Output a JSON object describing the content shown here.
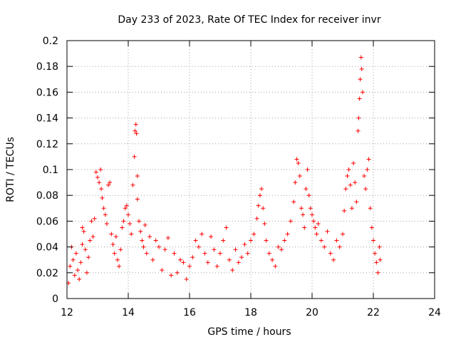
{
  "chart_data": {
    "type": "scatter",
    "title": "Day 233 of 2023, Rate Of TEC Index for receiver invr",
    "xlabel": "GPS time / hours",
    "ylabel": "ROTI / TECUs",
    "xlim": [
      12,
      24
    ],
    "ylim": [
      0,
      0.2
    ],
    "xticks": [
      12,
      14,
      16,
      18,
      20,
      22,
      24
    ],
    "xtick_labels": [
      "12",
      "14",
      "16",
      "18",
      "20",
      "22",
      "24"
    ],
    "yticks": [
      0,
      0.02,
      0.04,
      0.06,
      0.08,
      0.1,
      0.12,
      0.14,
      0.16,
      0.18,
      0.2
    ],
    "ytick_labels": [
      "0",
      "0.02",
      "0.04",
      "0.06",
      "0.08",
      "0.1",
      "0.12",
      "0.14",
      "0.16",
      "0.18",
      "0.2"
    ],
    "grid": true,
    "marker": "+",
    "color": "#ff0000",
    "series": [
      {
        "name": "ROTI",
        "points": [
          [
            12.05,
            0.012
          ],
          [
            12.1,
            0.025
          ],
          [
            12.15,
            0.04
          ],
          [
            12.2,
            0.03
          ],
          [
            12.25,
            0.018
          ],
          [
            12.3,
            0.035
          ],
          [
            12.35,
            0.022
          ],
          [
            12.4,
            0.015
          ],
          [
            12.45,
            0.028
          ],
          [
            12.5,
            0.042
          ],
          [
            12.5,
            0.055
          ],
          [
            12.55,
            0.052
          ],
          [
            12.6,
            0.038
          ],
          [
            12.65,
            0.02
          ],
          [
            12.7,
            0.032
          ],
          [
            12.75,
            0.045
          ],
          [
            12.8,
            0.06
          ],
          [
            12.85,
            0.048
          ],
          [
            12.9,
            0.062
          ],
          [
            12.95,
            0.098
          ],
          [
            13.0,
            0.094
          ],
          [
            13.05,
            0.09
          ],
          [
            13.1,
            0.1
          ],
          [
            13.12,
            0.085
          ],
          [
            13.15,
            0.078
          ],
          [
            13.2,
            0.07
          ],
          [
            13.25,
            0.065
          ],
          [
            13.3,
            0.058
          ],
          [
            13.35,
            0.088
          ],
          [
            13.4,
            0.09
          ],
          [
            13.45,
            0.05
          ],
          [
            13.5,
            0.042
          ],
          [
            13.55,
            0.035
          ],
          [
            13.6,
            0.048
          ],
          [
            13.65,
            0.03
          ],
          [
            13.7,
            0.025
          ],
          [
            13.75,
            0.038
          ],
          [
            13.8,
            0.055
          ],
          [
            13.85,
            0.06
          ],
          [
            13.9,
            0.07
          ],
          [
            13.95,
            0.072
          ],
          [
            14.0,
            0.065
          ],
          [
            14.05,
            0.058
          ],
          [
            14.1,
            0.05
          ],
          [
            14.15,
            0.088
          ],
          [
            14.2,
            0.11
          ],
          [
            14.22,
            0.13
          ],
          [
            14.25,
            0.135
          ],
          [
            14.27,
            0.128
          ],
          [
            14.3,
            0.095
          ],
          [
            14.3,
            0.077
          ],
          [
            14.35,
            0.06
          ],
          [
            14.4,
            0.052
          ],
          [
            14.45,
            0.045
          ],
          [
            14.5,
            0.04
          ],
          [
            14.55,
            0.057
          ],
          [
            14.6,
            0.035
          ],
          [
            14.7,
            0.048
          ],
          [
            14.8,
            0.03
          ],
          [
            14.9,
            0.045
          ],
          [
            15.0,
            0.04
          ],
          [
            15.1,
            0.022
          ],
          [
            15.2,
            0.038
          ],
          [
            15.3,
            0.047
          ],
          [
            15.4,
            0.018
          ],
          [
            15.5,
            0.035
          ],
          [
            15.6,
            0.02
          ],
          [
            15.7,
            0.03
          ],
          [
            15.8,
            0.028
          ],
          [
            15.9,
            0.015
          ],
          [
            16.0,
            0.025
          ],
          [
            16.1,
            0.032
          ],
          [
            16.2,
            0.045
          ],
          [
            16.3,
            0.04
          ],
          [
            16.4,
            0.05
          ],
          [
            16.5,
            0.035
          ],
          [
            16.6,
            0.028
          ],
          [
            16.7,
            0.048
          ],
          [
            16.8,
            0.038
          ],
          [
            16.9,
            0.025
          ],
          [
            17.0,
            0.035
          ],
          [
            17.1,
            0.045
          ],
          [
            17.2,
            0.055
          ],
          [
            17.3,
            0.03
          ],
          [
            17.4,
            0.022
          ],
          [
            17.5,
            0.038
          ],
          [
            17.6,
            0.028
          ],
          [
            17.7,
            0.032
          ],
          [
            17.8,
            0.042
          ],
          [
            17.9,
            0.035
          ],
          [
            18.0,
            0.045
          ],
          [
            18.1,
            0.05
          ],
          [
            18.2,
            0.062
          ],
          [
            18.25,
            0.072
          ],
          [
            18.3,
            0.08
          ],
          [
            18.35,
            0.085
          ],
          [
            18.4,
            0.07
          ],
          [
            18.45,
            0.058
          ],
          [
            18.5,
            0.045
          ],
          [
            18.6,
            0.035
          ],
          [
            18.7,
            0.03
          ],
          [
            18.8,
            0.025
          ],
          [
            18.9,
            0.04
          ],
          [
            19.0,
            0.038
          ],
          [
            19.1,
            0.045
          ],
          [
            19.2,
            0.05
          ],
          [
            19.3,
            0.06
          ],
          [
            19.4,
            0.075
          ],
          [
            19.45,
            0.09
          ],
          [
            19.5,
            0.108
          ],
          [
            19.55,
            0.105
          ],
          [
            19.6,
            0.095
          ],
          [
            19.65,
            0.07
          ],
          [
            19.7,
            0.065
          ],
          [
            19.75,
            0.055
          ],
          [
            19.8,
            0.085
          ],
          [
            19.85,
            0.1
          ],
          [
            19.9,
            0.08
          ],
          [
            19.95,
            0.07
          ],
          [
            20.0,
            0.065
          ],
          [
            20.05,
            0.06
          ],
          [
            20.1,
            0.055
          ],
          [
            20.15,
            0.05
          ],
          [
            20.2,
            0.058
          ],
          [
            20.3,
            0.045
          ],
          [
            20.4,
            0.04
          ],
          [
            20.5,
            0.052
          ],
          [
            20.6,
            0.035
          ],
          [
            20.7,
            0.03
          ],
          [
            20.8,
            0.045
          ],
          [
            20.9,
            0.04
          ],
          [
            21.0,
            0.05
          ],
          [
            21.05,
            0.068
          ],
          [
            21.1,
            0.085
          ],
          [
            21.15,
            0.095
          ],
          [
            21.2,
            0.1
          ],
          [
            21.25,
            0.088
          ],
          [
            21.3,
            0.07
          ],
          [
            21.35,
            0.105
          ],
          [
            21.4,
            0.09
          ],
          [
            21.45,
            0.075
          ],
          [
            21.5,
            0.13
          ],
          [
            21.52,
            0.14
          ],
          [
            21.55,
            0.155
          ],
          [
            21.57,
            0.17
          ],
          [
            21.6,
            0.187
          ],
          [
            21.62,
            0.178
          ],
          [
            21.65,
            0.16
          ],
          [
            21.7,
            0.095
          ],
          [
            21.75,
            0.085
          ],
          [
            21.8,
            0.1
          ],
          [
            21.85,
            0.108
          ],
          [
            21.9,
            0.07
          ],
          [
            21.95,
            0.055
          ],
          [
            22.0,
            0.045
          ],
          [
            22.05,
            0.035
          ],
          [
            22.1,
            0.028
          ],
          [
            22.15,
            0.02
          ],
          [
            22.2,
            0.04
          ],
          [
            22.22,
            0.03
          ]
        ]
      }
    ]
  }
}
